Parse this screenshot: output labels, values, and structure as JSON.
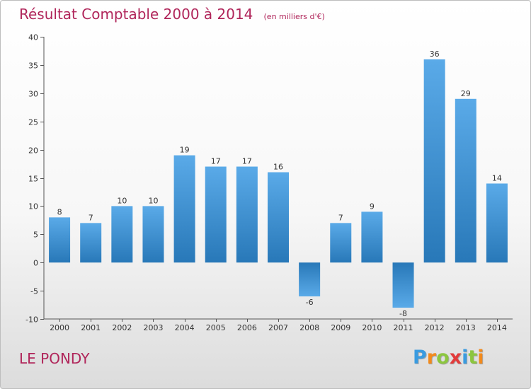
{
  "chart_data": {
    "type": "bar",
    "title": "Résultat Comptable 2000 à 2014",
    "subtitle": "(en milliers d'€)",
    "categories": [
      "2000",
      "2001",
      "2002",
      "2003",
      "2004",
      "2005",
      "2006",
      "2007",
      "2008",
      "2009",
      "2010",
      "2011",
      "2012",
      "2013",
      "2014"
    ],
    "values": [
      8,
      7,
      10,
      10,
      19,
      17,
      17,
      16,
      -6,
      7,
      9,
      -8,
      36,
      29,
      14
    ],
    "ylim": [
      -10,
      40
    ],
    "yticks": [
      -10,
      -5,
      0,
      5,
      10,
      15,
      20,
      25,
      30,
      35,
      40
    ],
    "grid": false,
    "bar_color_top": "#5aaae8",
    "bar_color_bottom": "#2878b8"
  },
  "footer": {
    "commune": "LE PONDY",
    "brand": "Proxiti",
    "brand_colors": [
      "#3a9be0",
      "#f28a1c",
      "#8cc63f",
      "#e23b3b",
      "#3a9be0",
      "#8cc63f",
      "#f28a1c"
    ]
  },
  "colors": {
    "title": "#b0255a",
    "axis": "#555555",
    "label": "#333333"
  }
}
